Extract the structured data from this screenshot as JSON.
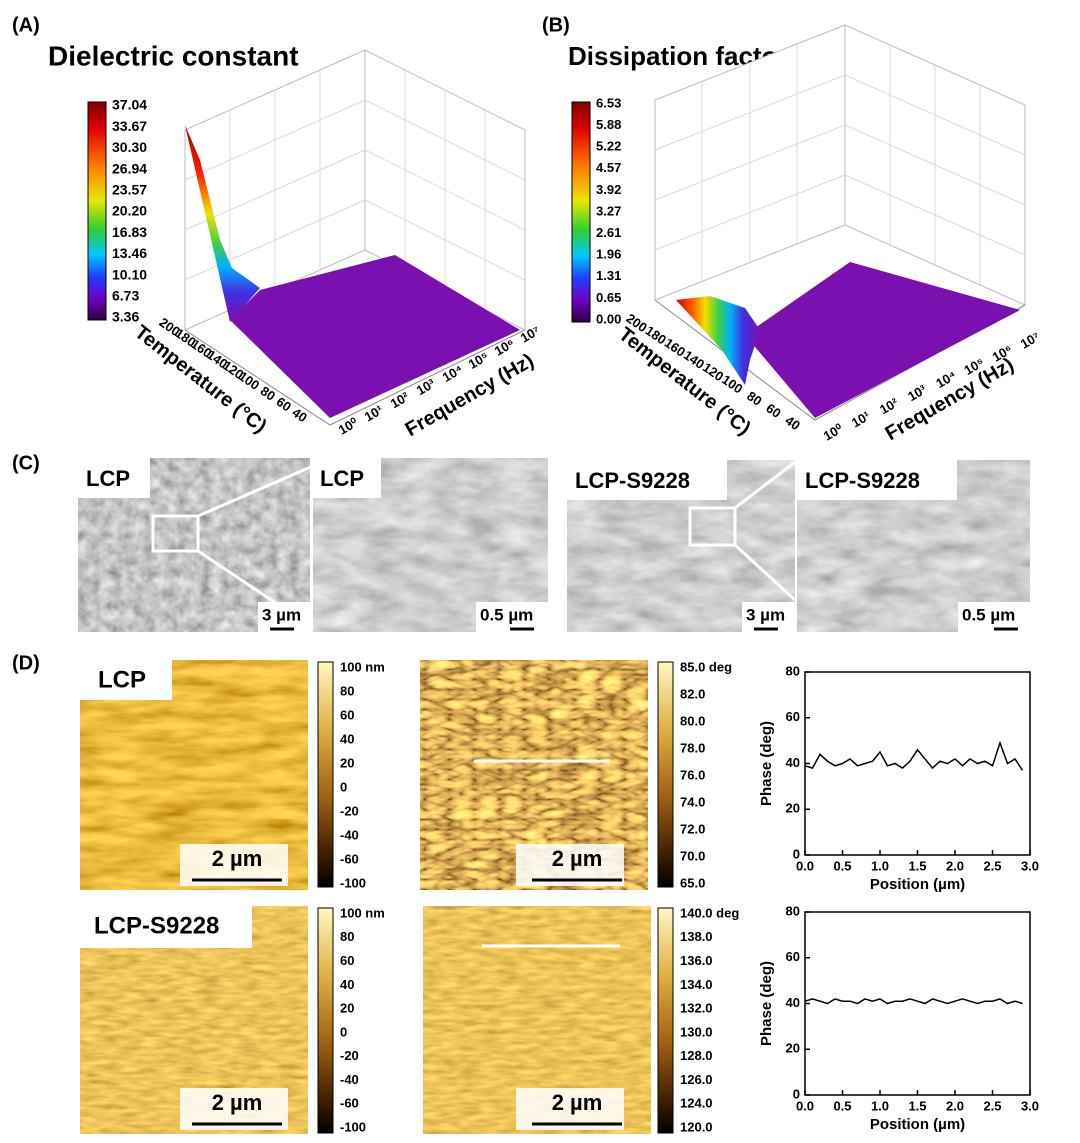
{
  "panels": {
    "a": {
      "label": "(A)",
      "title": "Dielectric constant",
      "colorbar": [
        "37.04",
        "33.67",
        "30.30",
        "26.94",
        "23.57",
        "20.20",
        "16.83",
        "13.46",
        "10.10",
        "6.73",
        "3.36"
      ],
      "y_axis_label": "Temperature (°C)",
      "y_ticks": [
        "200",
        "180",
        "160",
        "140",
        "120",
        "100",
        "80",
        "60",
        "40"
      ],
      "x_axis_label": "Frequency (Hz)",
      "x_ticks": [
        "10⁰",
        "10¹",
        "10²",
        "10³",
        "10⁴",
        "10⁵",
        "10⁶",
        "10⁷"
      ]
    },
    "b": {
      "label": "(B)",
      "title": "Dissipation factor",
      "colorbar": [
        "6.53",
        "5.88",
        "5.22",
        "4.57",
        "3.92",
        "3.27",
        "2.61",
        "1.96",
        "1.31",
        "0.65",
        "0.00"
      ],
      "y_axis_label": "Temperature (°C)",
      "y_ticks": [
        "200",
        "180",
        "160",
        "140",
        "120",
        "100",
        "80",
        "60",
        "40"
      ],
      "x_axis_label": "Frequency (Hz)",
      "x_ticks": [
        "10⁰",
        "10¹",
        "10²",
        "10³",
        "10⁴",
        "10⁵",
        "10⁶",
        "10⁷"
      ]
    },
    "c": {
      "label": "(C)",
      "images": [
        {
          "label": "LCP",
          "scale": "3 µm"
        },
        {
          "label": "LCP",
          "scale": "0.5 µm"
        },
        {
          "label": "LCP-S9228",
          "scale": "3 µm"
        },
        {
          "label": "LCP-S9228",
          "scale": "0.5 µm"
        }
      ]
    },
    "d": {
      "label": "(D)",
      "rows": [
        {
          "sample": "LCP",
          "height_scale": "2 µm",
          "phase_scale": "2 µm",
          "height_colorbar": [
            "100 nm",
            "80",
            "60",
            "40",
            "20",
            "0",
            "-20",
            "-40",
            "-60",
            "-100"
          ],
          "phase_colorbar": [
            "85.0 deg",
            "82.0",
            "80.0",
            "78.0",
            "76.0",
            "74.0",
            "72.0",
            "70.0",
            "65.0"
          ]
        },
        {
          "sample": "LCP-S9228",
          "height_scale": "2 µm",
          "phase_scale": "2 µm",
          "height_colorbar": [
            "100 nm",
            "80",
            "60",
            "40",
            "20",
            "0",
            "-20",
            "-40",
            "-60",
            "-100"
          ],
          "phase_colorbar": [
            "140.0 deg",
            "138.0",
            "136.0",
            "134.0",
            "132.0",
            "130.0",
            "128.0",
            "126.0",
            "124.0",
            "120.0"
          ]
        }
      ]
    }
  },
  "chart_data": [
    {
      "type": "line",
      "x_label": "Position (µm)",
      "y_label": "Phase (deg)",
      "x": [
        0.0,
        0.1,
        0.2,
        0.3,
        0.4,
        0.5,
        0.6,
        0.7,
        0.8,
        0.9,
        1.0,
        1.1,
        1.2,
        1.3,
        1.4,
        1.5,
        1.6,
        1.7,
        1.8,
        1.9,
        2.0,
        2.1,
        2.2,
        2.3,
        2.4,
        2.5,
        2.6,
        2.7,
        2.8,
        2.9
      ],
      "series": [
        {
          "color": "#000000",
          "values": [
            39,
            38,
            44,
            41,
            39,
            40,
            42,
            39,
            40,
            41,
            45,
            39,
            40,
            38,
            41,
            46,
            42,
            38,
            41,
            40,
            42,
            39,
            42,
            40,
            41,
            39,
            49,
            40,
            42,
            37
          ]
        }
      ],
      "xlim": [
        0,
        3
      ],
      "ylim": [
        0,
        80
      ],
      "xticks": [
        {
          "value": 0,
          "label": "0.0"
        },
        {
          "value": 0.5,
          "label": "0.5"
        },
        {
          "value": 1,
          "label": "1.0"
        },
        {
          "value": 1.5,
          "label": "1.5"
        },
        {
          "value": 2,
          "label": "2.0"
        },
        {
          "value": 2.5,
          "label": "2.5"
        },
        {
          "value": 3,
          "label": "3.0"
        }
      ],
      "yticks": [
        0,
        20,
        40,
        60,
        80
      ]
    },
    {
      "type": "line",
      "x_label": "Position (µm)",
      "y_label": "Phase (deg)",
      "x": [
        0.0,
        0.1,
        0.2,
        0.3,
        0.4,
        0.5,
        0.6,
        0.7,
        0.8,
        0.9,
        1.0,
        1.1,
        1.2,
        1.3,
        1.4,
        1.5,
        1.6,
        1.7,
        1.8,
        1.9,
        2.0,
        2.1,
        2.2,
        2.3,
        2.4,
        2.5,
        2.6,
        2.7,
        2.8,
        2.9
      ],
      "series": [
        {
          "color": "#000000",
          "values": [
            41,
            42,
            41,
            40,
            42,
            41,
            41,
            40,
            42,
            41,
            42,
            40,
            41,
            41,
            42,
            41,
            40,
            42,
            41,
            40,
            41,
            42,
            41,
            40,
            41,
            41,
            42,
            40,
            41,
            40
          ]
        }
      ],
      "xlim": [
        0,
        3
      ],
      "ylim": [
        0,
        80
      ],
      "xticks": [
        {
          "value": 0,
          "label": "0.0"
        },
        {
          "value": 0.5,
          "label": "0.5"
        },
        {
          "value": 1,
          "label": "1.0"
        },
        {
          "value": 1.5,
          "label": "1.5"
        },
        {
          "value": 2,
          "label": "2.0"
        },
        {
          "value": 2.5,
          "label": "2.5"
        },
        {
          "value": 3,
          "label": "3.0"
        }
      ],
      "yticks": [
        0,
        20,
        40,
        60,
        80
      ]
    }
  ]
}
